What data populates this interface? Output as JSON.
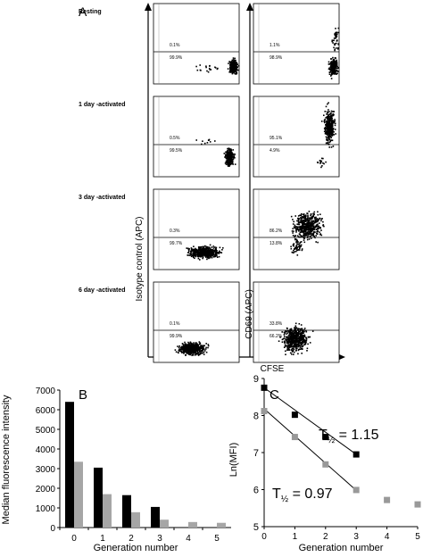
{
  "panel_a": {
    "label": "A",
    "rows": [
      {
        "label": "Resting",
        "left": {
          "upper": "0.1%",
          "lower": "99.9%"
        },
        "right": {
          "upper": "1.1%",
          "lower": "98.9%"
        }
      },
      {
        "label": "1 day -activated",
        "left": {
          "upper": "0.5%",
          "lower": "99.5%"
        },
        "right": {
          "upper": "95.1%",
          "lower": "4.9%"
        }
      },
      {
        "label": "3 day -activated",
        "left": {
          "upper": "0.3%",
          "lower": "99.7%"
        },
        "right": {
          "upper": "86.2%",
          "lower": "13.8%"
        }
      },
      {
        "label": "6 day -activated",
        "left": {
          "upper": "0.1%",
          "lower": "99.9%"
        },
        "right": {
          "upper": "33.8%",
          "lower": "66.2%"
        }
      }
    ],
    "left_ylabel": "Isotype control (APC)",
    "right_ylabel": "CD69 (APC)",
    "xlabel": "CFSE"
  },
  "chart_data": [
    {
      "panel": "B",
      "type": "bar",
      "title": "",
      "xlabel": "Generation number",
      "ylabel": "Median fluorescence intensity",
      "categories": [
        "0",
        "1",
        "2",
        "3",
        "4",
        "5"
      ],
      "ylim": [
        0,
        7000
      ],
      "yticks": [
        "0",
        "1000",
        "2000",
        "3000",
        "4000",
        "5000",
        "6000",
        "7000"
      ],
      "series": [
        {
          "color": "#000000",
          "values": [
            6400,
            3050,
            1650,
            1050,
            null,
            null
          ]
        },
        {
          "color": "#a6a6a6",
          "values": [
            3350,
            1700,
            780,
            400,
            280,
            240
          ]
        }
      ]
    },
    {
      "panel": "C",
      "type": "scatter",
      "title": "",
      "xlabel": "Generation number",
      "ylabel": "Ln(MFI)",
      "xlim": [
        0,
        5
      ],
      "ylim": [
        5,
        9
      ],
      "xticks": [
        "0",
        "1",
        "2",
        "3",
        "4",
        "5"
      ],
      "yticks": [
        "5",
        "6",
        "7",
        "8",
        "9"
      ],
      "series": [
        {
          "color": "#000000",
          "x": [
            0,
            1,
            2,
            3
          ],
          "y": [
            8.75,
            8.02,
            7.42,
            6.95
          ]
        },
        {
          "color": "#999999",
          "x": [
            0,
            1,
            2,
            3,
            4,
            5
          ],
          "y": [
            8.12,
            7.42,
            6.68,
            5.99,
            5.72,
            5.6
          ]
        }
      ],
      "trendlines": [
        {
          "color": "#000000",
          "x": [
            0,
            3
          ],
          "y": [
            8.75,
            6.95
          ]
        },
        {
          "color": "#000000",
          "x": [
            0,
            3
          ],
          "y": [
            8.18,
            5.98
          ]
        }
      ],
      "annotations": [
        {
          "label": "T",
          "subscript": "½",
          "value": "= 1.15"
        },
        {
          "label": "T",
          "subscript": "½",
          "value": "= 0.97"
        }
      ]
    }
  ]
}
